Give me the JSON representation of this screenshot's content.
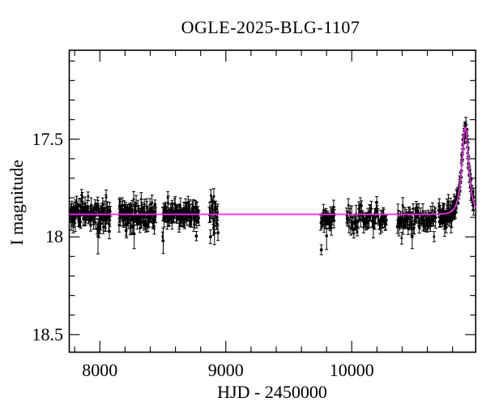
{
  "chart_data": {
    "type": "scatter",
    "title": "OGLE-2025-BLG-1107",
    "xlabel": "HJD - 2450000",
    "ylabel": "I magnitude",
    "x_range": [
      7757,
      10984
    ],
    "y_range_mag": [
      18.59,
      17.045
    ],
    "y_axis_inverted": true,
    "grid": false,
    "x_major_ticks": [
      {
        "value": 8000,
        "label": "8000"
      },
      {
        "value": 9000,
        "label": "9000"
      },
      {
        "value": 10000,
        "label": "10000"
      }
    ],
    "x_minor_ticks": [
      7800,
      8200,
      8400,
      8600,
      8800,
      9200,
      9400,
      9600,
      9800,
      10200,
      10400,
      10600,
      10800
    ],
    "y_major_ticks": [
      {
        "value": 17.5,
        "label": "17.5"
      },
      {
        "value": 18,
        "label": "18"
      },
      {
        "value": 18.5,
        "label": "18.5"
      }
    ],
    "y_minor_ticks": [
      17.1,
      17.2,
      17.3,
      17.4,
      17.6,
      17.7,
      17.8,
      17.9,
      18.1,
      18.2,
      18.3,
      18.4
    ],
    "point_color": "#000000",
    "model_color": "#ee2dee",
    "frame_color": "#000000",
    "microlensing_model": {
      "t0": 10901,
      "tE": 36,
      "u0": 0.82,
      "baseline_I": 17.885,
      "peak_I": 17.44
    },
    "seasons": [
      {
        "t_start": 7765,
        "t_end": 8085,
        "n": 110,
        "sigma": 0.03,
        "offset": 0
      },
      {
        "t_start": 8150,
        "t_end": 8445,
        "n": 110,
        "sigma": 0.03,
        "offset": 0
      },
      {
        "t_start": 8497,
        "t_end": 8787,
        "n": 100,
        "sigma": 0.03,
        "offset": 0
      },
      {
        "t_start": 8868,
        "t_end": 8940,
        "n": 22,
        "sigma": 0.028,
        "offset": 0
      },
      {
        "t_start": 9752,
        "t_end": 9865,
        "n": 30,
        "sigma": 0.03,
        "offset": 0.022
      },
      {
        "t_start": 9958,
        "t_end": 10276,
        "n": 68,
        "sigma": 0.03,
        "offset": 0.022
      },
      {
        "t_start": 10360,
        "t_end": 10668,
        "n": 72,
        "sigma": 0.03,
        "offset": 0.024
      },
      {
        "t_start": 10690,
        "t_end": 10795,
        "n": 40,
        "sigma": 0.026,
        "offset": 0.01
      },
      {
        "t_start": 10795,
        "t_end": 10968,
        "n": 80,
        "sigma": 0.018,
        "offset": 0
      }
    ],
    "outliers": [
      {
        "t": 7985,
        "mag": 17.997,
        "err": 0.09
      },
      {
        "t": 8273,
        "mag": 17.985,
        "err": 0.075
      },
      {
        "t": 8503,
        "mag": 18.02,
        "err": 0.065
      },
      {
        "t": 8910,
        "mag": 17.98,
        "err": 0.06
      },
      {
        "t": 9800,
        "mag": 17.995,
        "err": 0.07
      },
      {
        "t": 10480,
        "mag": 18.0,
        "err": 0.06
      }
    ],
    "random_seed": 11
  }
}
